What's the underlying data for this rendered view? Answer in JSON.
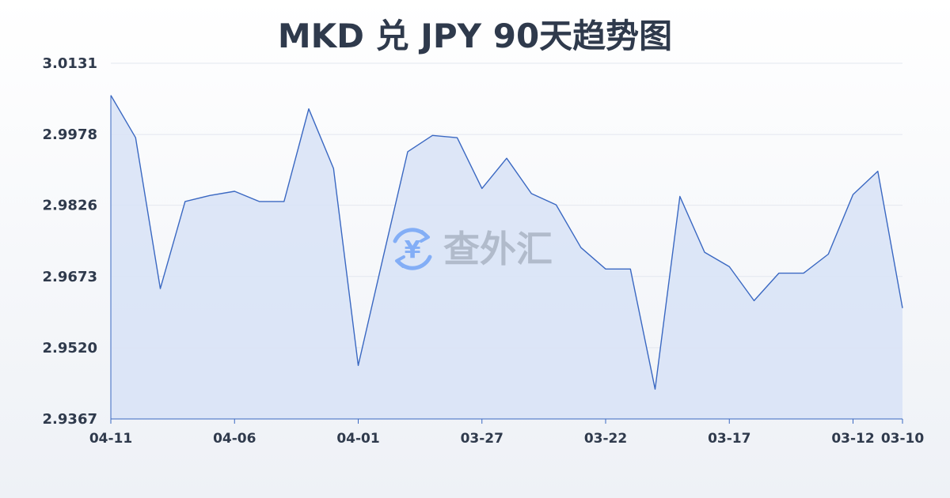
{
  "chart_data": {
    "type": "area",
    "title": "MKD 兑 JPY 90天趋势图",
    "xlabel": "",
    "ylabel": "",
    "y_ticks": [
      "3.0131",
      "2.9978",
      "2.9826",
      "2.9673",
      "2.9520",
      "2.9367"
    ],
    "ylim": [
      2.9367,
      3.0131
    ],
    "x_tick_labels": [
      {
        "label": "04-11",
        "index": 0
      },
      {
        "label": "04-06",
        "index": 5
      },
      {
        "label": "04-01",
        "index": 10
      },
      {
        "label": "03-27",
        "index": 15
      },
      {
        "label": "03-22",
        "index": 20
      },
      {
        "label": "03-17",
        "index": 25
      },
      {
        "label": "03-12",
        "index": 30
      },
      {
        "label": "03-10",
        "index": 32
      }
    ],
    "grid": true,
    "series": [
      {
        "values": [
          3.0062,
          2.9971,
          2.9647,
          2.9834,
          2.9847,
          2.9856,
          2.9834,
          2.9834,
          3.0033,
          2.9905,
          2.9482,
          2.9713,
          2.9941,
          2.9976,
          2.9971,
          2.9862,
          2.9927,
          2.9851,
          2.9827,
          2.9735,
          2.9689,
          2.9689,
          2.9431,
          2.9845,
          2.9725,
          2.9694,
          2.9621,
          2.968,
          2.968,
          2.9721,
          2.9849,
          2.9899,
          2.9605
        ]
      }
    ],
    "colors": {
      "line": "#3a68c2",
      "fill": "#d6e1f6"
    }
  },
  "watermark": {
    "text": "查外汇",
    "icon": "yen-exchange-icon",
    "color": "#3b82f6"
  }
}
